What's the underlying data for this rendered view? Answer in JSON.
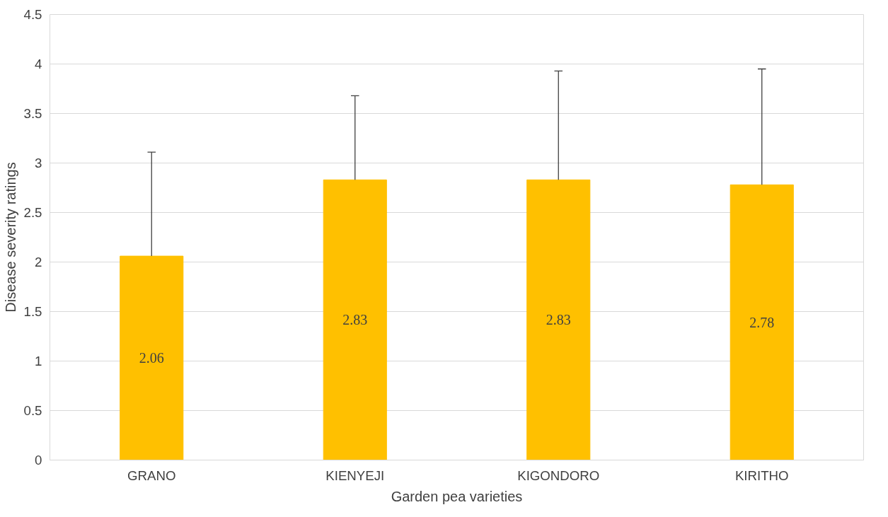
{
  "chart_data": {
    "type": "bar",
    "xlabel": "Garden pea varieties",
    "ylabel": "Disease severity ratings",
    "categories": [
      "GRANO",
      "KIENYEJI",
      "KIGONDORO",
      "KIRITHO"
    ],
    "values": [
      2.06,
      2.83,
      2.83,
      2.78
    ],
    "color": "#ffc000",
    "errors": [
      [
        2.06,
        3.11
      ],
      [
        2.83,
        3.68
      ],
      [
        2.83,
        3.93
      ],
      [
        2.78,
        3.95
      ]
    ],
    "ylim": [
      0,
      4.5
    ],
    "yticks": [
      0,
      0.5,
      1,
      1.5,
      2,
      2.5,
      3,
      3.5,
      4,
      4.5
    ],
    "grid": "y",
    "data_labels": true
  }
}
